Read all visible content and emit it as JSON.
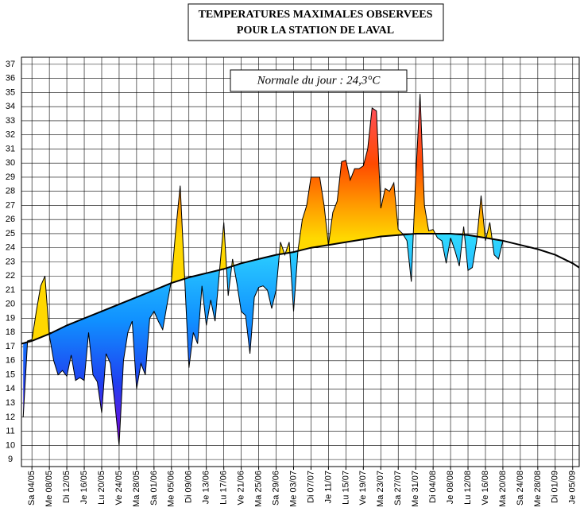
{
  "chart_data": {
    "type": "line",
    "title": [
      "TEMPERATURES MAXIMALES OBSERVEES",
      "POUR LA STATION DE LAVAL"
    ],
    "annotation": "Normale du jour : 24,3°C",
    "xlim": [
      -2.4,
      125.5
    ],
    "ylim": [
      8.5,
      37.5
    ],
    "yticks": [
      9,
      10,
      11,
      12,
      13,
      14,
      15,
      16,
      17,
      18,
      19,
      20,
      21,
      22,
      23,
      24,
      25,
      26,
      27,
      28,
      29,
      30,
      31,
      32,
      33,
      34,
      35,
      36,
      37
    ],
    "xticks": [
      {
        "value": 0,
        "label": "Sa 04/05"
      },
      {
        "value": 4,
        "label": "Me 08/05"
      },
      {
        "value": 8,
        "label": "Di 12/05"
      },
      {
        "value": 12,
        "label": "Je 16/05"
      },
      {
        "value": 16,
        "label": "Lu 20/05"
      },
      {
        "value": 20,
        "label": "Ve 24/05"
      },
      {
        "value": 24,
        "label": "Ma 28/05"
      },
      {
        "value": 28,
        "label": "Sa 01/06"
      },
      {
        "value": 32,
        "label": "Me 05/06"
      },
      {
        "value": 36,
        "label": "Di 09/06"
      },
      {
        "value": 40,
        "label": "Je 13/06"
      },
      {
        "value": 44,
        "label": "Lu 17/06"
      },
      {
        "value": 48,
        "label": "Ve 21/06"
      },
      {
        "value": 52,
        "label": "Ma 25/06"
      },
      {
        "value": 56,
        "label": "Sa 29/06"
      },
      {
        "value": 60,
        "label": "Me 03/07"
      },
      {
        "value": 64,
        "label": "Di 07/07"
      },
      {
        "value": 68,
        "label": "Je 11/07"
      },
      {
        "value": 72,
        "label": "Lu 15/07"
      },
      {
        "value": 76,
        "label": "Ve 19/07"
      },
      {
        "value": 80,
        "label": "Ma 23/07"
      },
      {
        "value": 84,
        "label": "Sa 27/07"
      },
      {
        "value": 88,
        "label": "Me 31/07"
      },
      {
        "value": 92,
        "label": "Di 04/08"
      },
      {
        "value": 96,
        "label": "Je 08/08"
      },
      {
        "value": 100,
        "label": "Lu 12/08"
      },
      {
        "value": 104,
        "label": "Ve 16/08"
      },
      {
        "value": 108,
        "label": "Ma 20/08"
      },
      {
        "value": 112,
        "label": "Sa 24/08"
      },
      {
        "value": 116,
        "label": "Me 28/08"
      },
      {
        "value": 120,
        "label": "Di 01/09"
      },
      {
        "value": 124,
        "label": "Je 05/09"
      }
    ],
    "grid": true,
    "series": [
      {
        "color": "#000000",
        "x": [
          -2,
          -1,
          0,
          1,
          2,
          3,
          4,
          5,
          6,
          7,
          8,
          9,
          10,
          11,
          12,
          13,
          14,
          15,
          16,
          17,
          18,
          19,
          20,
          21,
          22,
          23,
          24,
          25,
          26,
          27,
          28,
          29,
          30,
          31,
          32,
          33,
          34,
          35,
          36,
          37,
          38,
          39,
          40,
          41,
          42,
          43,
          44,
          45,
          46,
          47,
          48,
          49,
          50,
          51,
          52,
          53,
          54,
          55,
          56,
          57,
          58,
          59,
          60,
          61,
          62,
          63,
          64,
          65,
          66,
          67,
          68,
          69,
          70,
          71,
          72,
          73,
          74,
          75,
          76,
          77,
          78,
          79,
          80,
          81,
          82,
          83,
          84,
          85,
          86,
          87,
          88,
          89,
          90,
          91,
          92,
          93,
          94,
          95,
          96,
          97,
          98,
          99,
          100,
          101,
          102,
          103,
          104,
          105,
          106,
          107,
          108
        ],
        "values": [
          12,
          17.4,
          17.5,
          19.5,
          21.3,
          22,
          17.8,
          16,
          15,
          15.3,
          14.9,
          16.4,
          14.6,
          14.8,
          14.6,
          18,
          15,
          14.5,
          12.3,
          16.5,
          15.8,
          13,
          10,
          16,
          18,
          18.8,
          14,
          15.8,
          15,
          19,
          19.5,
          18.8,
          18.2,
          20,
          21.7,
          25.3,
          28.4,
          22,
          15.5,
          18,
          17.2,
          21.3,
          18.5,
          20.3,
          18.8,
          22.3,
          25.8,
          20.6,
          23.2,
          21.5,
          19.5,
          19.2,
          16.5,
          20.5,
          21.2,
          21.3,
          21,
          19.7,
          21,
          24.4,
          23.5,
          24.4,
          19.5,
          23.8,
          26,
          27,
          29,
          29,
          29,
          27,
          24.2,
          26.5,
          27.3,
          30.1,
          30.2,
          28.8,
          29.6,
          29.6,
          29.8,
          31,
          33.9,
          33.7,
          26.8,
          28.2,
          28,
          28.6,
          25.3,
          25,
          24.5,
          21.6,
          29,
          34.9,
          27,
          25.2,
          25.3,
          24.7,
          24.5,
          22.9,
          24.7,
          23.8,
          22.7,
          25.5,
          22.4,
          22.6,
          24.5,
          27.7,
          24.5,
          25.8,
          23.5,
          23.2,
          24.5
        ]
      },
      {
        "color": "#000000",
        "x": [
          -2.4,
          0,
          4,
          8,
          12,
          16,
          20,
          24,
          28,
          32,
          36,
          40,
          44,
          48,
          52,
          56,
          60,
          64,
          68,
          72,
          76,
          80,
          84,
          88,
          92,
          96,
          100,
          104,
          108,
          112,
          116,
          120,
          124,
          125.5
        ],
        "values": [
          17.2,
          17.4,
          17.9,
          18.5,
          19.0,
          19.5,
          20.0,
          20.5,
          21.0,
          21.5,
          21.9,
          22.2,
          22.5,
          22.9,
          23.2,
          23.5,
          23.7,
          24.0,
          24.2,
          24.4,
          24.6,
          24.8,
          24.9,
          25.0,
          25.0,
          25.0,
          24.9,
          24.7,
          24.5,
          24.2,
          23.9,
          23.5,
          22.9,
          22.6
        ]
      }
    ]
  }
}
